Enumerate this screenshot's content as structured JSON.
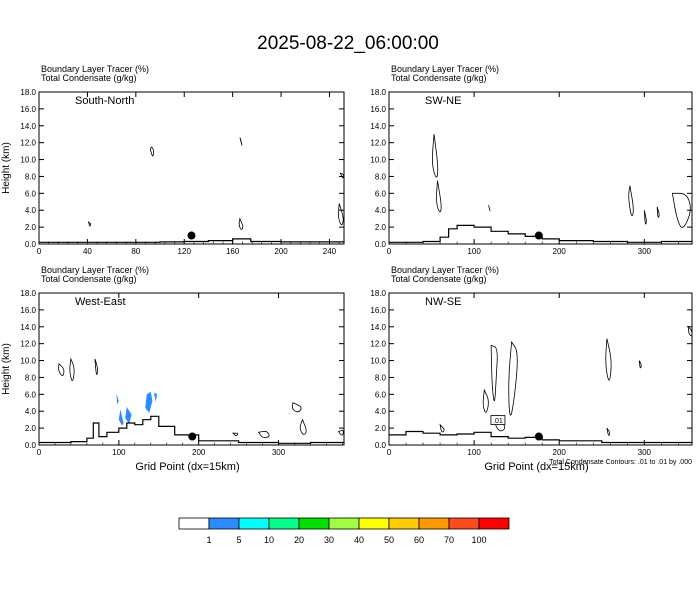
{
  "title": "2025-08-22_06:00:00",
  "colors": {
    "axis": "#000000",
    "terrain": "#000000",
    "condensate_contour": "#000000",
    "tracer_fill": "#2b8cff"
  },
  "chart_data": [
    {
      "type": "contour",
      "panel_label": "South-North",
      "header_line1": "Boundary Layer Tracer   (%)",
      "header_line2": "Total Condensate   (g/kg)",
      "ylabel": "Height (km)",
      "xlabel": "",
      "footnote": "",
      "xlim": [
        0,
        252
      ],
      "ylim": [
        0,
        18
      ],
      "xticks": [
        "0",
        "40",
        "80",
        "120",
        "160",
        "200",
        "240"
      ],
      "yticks": [
        "0.0",
        "2.0",
        "4.0",
        "6.0",
        "8.0",
        "10.0",
        "12.0",
        "14.0",
        "16.0",
        "18.0"
      ],
      "marker": {
        "x": 126,
        "y": 1.0
      },
      "terrain": [
        [
          0,
          0.2
        ],
        [
          30,
          0.2
        ],
        [
          60,
          0.2
        ],
        [
          100,
          0.25
        ],
        [
          120,
          0.3
        ],
        [
          140,
          0.4
        ],
        [
          160,
          0.6
        ],
        [
          175,
          0.3
        ],
        [
          200,
          0.25
        ],
        [
          252,
          0.3
        ]
      ],
      "condensate_contours": [
        [
          [
            92,
            11.2
          ],
          [
            94,
            10.2
          ],
          [
            95,
            11.0
          ],
          [
            93,
            11.6
          ]
        ],
        [
          [
            41,
            2.6
          ],
          [
            42,
            2.0
          ],
          [
            43,
            2.4
          ]
        ],
        [
          [
            166,
            12.6
          ],
          [
            168,
            11.5
          ],
          [
            167,
            12.2
          ]
        ],
        [
          [
            166,
            3.0
          ],
          [
            169,
            2.0
          ],
          [
            167,
            1.6
          ],
          [
            165,
            2.3
          ]
        ],
        [
          [
            249,
            8.4
          ],
          [
            251,
            7.7
          ],
          [
            252,
            8.2
          ]
        ],
        [
          [
            248,
            4.8
          ],
          [
            252,
            3.0
          ],
          [
            250,
            2.0
          ],
          [
            247,
            3.2
          ]
        ]
      ],
      "tracer_regions": []
    },
    {
      "type": "contour",
      "panel_label": "SW-NE",
      "header_line1": "Boundary Layer Tracer   (%)",
      "header_line2": "Total Condensate   (g/kg)",
      "ylabel": "",
      "xlabel": "",
      "footnote": "",
      "xlim": [
        0,
        356
      ],
      "ylim": [
        0,
        18
      ],
      "xticks": [
        "0",
        "100",
        "200",
        "300"
      ],
      "yticks": [
        "0.0",
        "2.0",
        "4.0",
        "6.0",
        "8.0",
        "10.0",
        "12.0",
        "14.0",
        "16.0",
        "18.0"
      ],
      "marker": {
        "x": 176,
        "y": 1.0
      },
      "terrain": [
        [
          0,
          0.2
        ],
        [
          40,
          0.3
        ],
        [
          60,
          0.8
        ],
        [
          70,
          1.8
        ],
        [
          80,
          2.2
        ],
        [
          100,
          2.0
        ],
        [
          120,
          1.5
        ],
        [
          140,
          1.2
        ],
        [
          160,
          0.9
        ],
        [
          180,
          0.6
        ],
        [
          200,
          0.4
        ],
        [
          240,
          0.3
        ],
        [
          280,
          0.2
        ],
        [
          320,
          0.3
        ],
        [
          356,
          0.4
        ]
      ],
      "condensate_contours": [
        [
          [
            53,
            13.0
          ],
          [
            58,
            9.0
          ],
          [
            56,
            7.5
          ],
          [
            50,
            9.5
          ]
        ],
        [
          [
            57,
            7.5
          ],
          [
            62,
            4.5
          ],
          [
            60,
            3.5
          ],
          [
            55,
            5.0
          ]
        ],
        [
          [
            117,
            4.6
          ],
          [
            119,
            3.8
          ],
          [
            118,
            4.2
          ]
        ],
        [
          [
            283,
            6.9
          ],
          [
            288,
            4.0
          ],
          [
            285,
            3.0
          ],
          [
            281,
            5.5
          ]
        ],
        [
          [
            300,
            4.0
          ],
          [
            303,
            2.6
          ],
          [
            301,
            2.2
          ]
        ],
        [
          [
            315,
            4.4
          ],
          [
            318,
            3.4
          ],
          [
            316,
            3.0
          ]
        ],
        [
          [
            333,
            6.0
          ],
          [
            350,
            6.0
          ],
          [
            356,
            4.0
          ],
          [
            345,
            1.5
          ],
          [
            338,
            3.0
          ]
        ]
      ],
      "tracer_regions": []
    },
    {
      "type": "contour",
      "panel_label": "West-East",
      "header_line1": "Boundary Layer Tracer   (%)",
      "header_line2": "Total Condensate   (g/kg)",
      "ylabel": "Height (km)",
      "xlabel": "Grid Point (dx=15km)",
      "footnote": "",
      "xlim": [
        0,
        382
      ],
      "ylim": [
        0,
        18
      ],
      "xticks": [
        "0",
        "100",
        "200",
        "300"
      ],
      "yticks": [
        "0.0",
        "2.0",
        "4.0",
        "6.0",
        "8.0",
        "10.0",
        "12.0",
        "14.0",
        "16.0",
        "18.0"
      ],
      "marker": {
        "x": 192,
        "y": 1.0
      },
      "terrain": [
        [
          0,
          0.3
        ],
        [
          40,
          0.4
        ],
        [
          60,
          0.8
        ],
        [
          68,
          2.6
        ],
        [
          75,
          1.0
        ],
        [
          85,
          1.5
        ],
        [
          100,
          2.0
        ],
        [
          110,
          2.6
        ],
        [
          120,
          2.4
        ],
        [
          130,
          3.0
        ],
        [
          140,
          3.4
        ],
        [
          150,
          2.2
        ],
        [
          170,
          1.2
        ],
        [
          200,
          0.5
        ],
        [
          250,
          0.3
        ],
        [
          300,
          0.2
        ],
        [
          340,
          0.3
        ],
        [
          382,
          0.4
        ]
      ],
      "condensate_contours": [
        [
          [
            25,
            9.6
          ],
          [
            32,
            9.0
          ],
          [
            30,
            8.0
          ],
          [
            24,
            8.8
          ]
        ],
        [
          [
            40,
            10.2
          ],
          [
            45,
            9.0
          ],
          [
            42,
            7.2
          ],
          [
            38,
            8.8
          ]
        ],
        [
          [
            70,
            10.2
          ],
          [
            74,
            9.0
          ],
          [
            72,
            8.0
          ]
        ],
        [
          [
            243,
            1.4
          ],
          [
            250,
            1.4
          ],
          [
            247,
            1.0
          ]
        ],
        [
          [
            275,
            1.5
          ],
          [
            285,
            1.7
          ],
          [
            290,
            1.0
          ],
          [
            280,
            0.8
          ]
        ],
        [
          [
            318,
            5.0
          ],
          [
            330,
            4.5
          ],
          [
            325,
            3.8
          ],
          [
            317,
            4.2
          ]
        ],
        [
          [
            330,
            3.0
          ],
          [
            336,
            1.6
          ],
          [
            331,
            1.1
          ],
          [
            326,
            2.0
          ]
        ],
        [
          [
            375,
            1.6
          ],
          [
            382,
            1.8
          ],
          [
            380,
            1.0
          ]
        ]
      ],
      "tracer_regions": [
        [
          [
            97,
            6.1
          ],
          [
            100,
            5.2
          ],
          [
            98,
            4.8
          ]
        ],
        [
          [
            102,
            4.2
          ],
          [
            106,
            2.6
          ],
          [
            104,
            2.3
          ],
          [
            100,
            3.0
          ]
        ],
        [
          [
            110,
            4.5
          ],
          [
            116,
            3.6
          ],
          [
            113,
            2.5
          ],
          [
            108,
            3.2
          ]
        ],
        [
          [
            135,
            6.0
          ],
          [
            140,
            6.3
          ],
          [
            142,
            5.2
          ],
          [
            138,
            3.8
          ],
          [
            133,
            4.4
          ]
        ],
        [
          [
            144,
            6.2
          ],
          [
            148,
            6.0
          ],
          [
            146,
            5.1
          ]
        ]
      ]
    },
    {
      "type": "contour",
      "panel_label": "NW-SE",
      "header_line1": "Boundary Layer Tracer   (%)",
      "header_line2": "Total Condensate   (g/kg)",
      "ylabel": "",
      "xlabel": "Grid Point (dx=15km)",
      "footnote": "Total Condensate Contours: .01 to .01 by .000",
      "contour_label": ".01",
      "xlim": [
        0,
        356
      ],
      "ylim": [
        0,
        18
      ],
      "xticks": [
        "0",
        "100",
        "200",
        "300"
      ],
      "yticks": [
        "0.0",
        "2.0",
        "4.0",
        "6.0",
        "8.0",
        "10.0",
        "12.0",
        "14.0",
        "16.0",
        "18.0"
      ],
      "marker": {
        "x": 176,
        "y": 1.0
      },
      "terrain": [
        [
          0,
          1.2
        ],
        [
          20,
          1.6
        ],
        [
          40,
          1.4
        ],
        [
          60,
          1.2
        ],
        [
          80,
          1.3
        ],
        [
          100,
          1.5
        ],
        [
          120,
          1.0
        ],
        [
          140,
          0.8
        ],
        [
          160,
          0.9
        ],
        [
          180,
          0.6
        ],
        [
          200,
          0.5
        ],
        [
          250,
          0.3
        ],
        [
          300,
          0.3
        ],
        [
          356,
          0.4
        ]
      ],
      "condensate_contours": [
        [
          [
            120,
            11.8
          ],
          [
            128,
            11.5
          ],
          [
            126,
            8.0
          ],
          [
            124,
            4.5
          ],
          [
            121,
            7.0
          ]
        ],
        [
          [
            144,
            12.2
          ],
          [
            152,
            11.0
          ],
          [
            148,
            6.0
          ],
          [
            142,
            2.5
          ],
          [
            140,
            7.5
          ]
        ],
        [
          [
            112,
            6.5
          ],
          [
            118,
            5.2
          ],
          [
            114,
            3.5
          ],
          [
            110,
            4.8
          ]
        ],
        [
          [
            128,
            3.5
          ],
          [
            138,
            2.0
          ],
          [
            130,
            1.5
          ],
          [
            124,
            2.5
          ]
        ],
        [
          [
            60,
            2.4
          ],
          [
            66,
            1.8
          ],
          [
            62,
            1.4
          ]
        ],
        [
          [
            256,
            12.6
          ],
          [
            262,
            10.0
          ],
          [
            259,
            7.0
          ],
          [
            254,
            9.5
          ]
        ],
        [
          [
            256,
            2.0
          ],
          [
            260,
            1.4
          ],
          [
            258,
            1.0
          ]
        ],
        [
          [
            294,
            10.0
          ],
          [
            297,
            9.4
          ],
          [
            295,
            9.0
          ]
        ],
        [
          [
            352,
            14.0
          ],
          [
            356,
            13.5
          ],
          [
            356,
            12.8
          ],
          [
            352,
            13.2
          ]
        ]
      ],
      "tracer_regions": []
    }
  ],
  "colorbar": {
    "boxes": [
      "#ffffff",
      "#2b8cff",
      "#00ffff",
      "#00ff88",
      "#00e000",
      "#a0ff40",
      "#ffff00",
      "#ffcc00",
      "#ff9900",
      "#ff4a1a",
      "#ff0000"
    ],
    "labels": [
      "1",
      "5",
      "10",
      "20",
      "30",
      "40",
      "50",
      "60",
      "70",
      "100"
    ]
  }
}
